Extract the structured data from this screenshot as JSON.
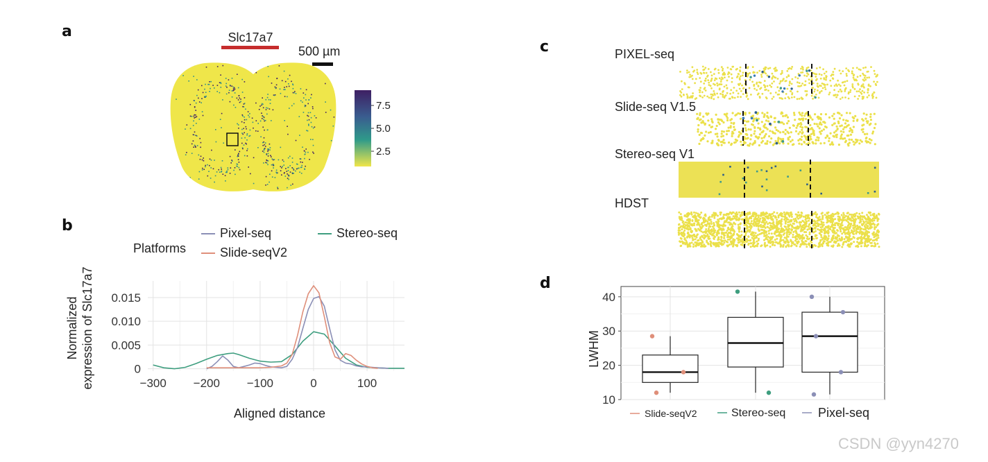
{
  "watermark": "CSDN @yyn4270",
  "panel_a": {
    "label": "a",
    "gene_title": "Slc17a7",
    "gene_bar_color": "#c62d2d",
    "scale_bar_label": "500 µm",
    "colorbar_ticks": [
      "7.5",
      "5.0",
      "2.5"
    ],
    "colors": {
      "low": "#efe64a",
      "mid": "#2f8f8a",
      "high": "#3e1f63"
    }
  },
  "panel_b": {
    "label": "b",
    "legend_title": "Platforms",
    "legend": [
      {
        "name": "Pixel-seq",
        "color": "#8b8fb6"
      },
      {
        "name": "Slide-seqV2",
        "color": "#df8f7a"
      },
      {
        "name": "Stereo-seq",
        "color": "#3e9e7f"
      }
    ],
    "ylabel_line1": "Normalized",
    "ylabel_line2": "expression of Slc17a7",
    "xlabel": "Aligned distance",
    "xticks": [
      "−300",
      "−200",
      "−100",
      "0",
      "100"
    ],
    "yticks": [
      "0",
      "0.005",
      "0.010",
      "0.015"
    ]
  },
  "panel_c": {
    "label": "c",
    "rows": [
      {
        "name": "PIXEL-seq"
      },
      {
        "name": "Slide-seq V1.5"
      },
      {
        "name": "Stereo-seq V1"
      },
      {
        "name": "HDST"
      }
    ],
    "dot_color": "#ebe04a",
    "hit_colors": [
      "#3f9a8c",
      "#2e5f8a",
      "#3a7ab8"
    ]
  },
  "panel_d": {
    "label": "d",
    "ylabel": "LWHM",
    "yticks": [
      "10",
      "20",
      "30",
      "40"
    ],
    "legend": [
      {
        "name": "Slide-seqV2",
        "color": "#df8f7a"
      },
      {
        "name": "Stereo-seq",
        "color": "#3e9e7f"
      },
      {
        "name": "Pixel-seq",
        "color": "#8b8fb6"
      }
    ]
  },
  "chart_data": [
    {
      "type": "line",
      "panel": "b",
      "title": "",
      "xlabel": "Aligned distance",
      "ylabel": "Normalized expression of Slc17a7",
      "xlim": [
        -310,
        170
      ],
      "ylim": [
        -0.0005,
        0.0185
      ],
      "series": [
        {
          "name": "Stereo-seq",
          "color": "#3e9e7f",
          "x": [
            -300,
            -280,
            -260,
            -240,
            -220,
            -200,
            -180,
            -160,
            -150,
            -140,
            -120,
            -100,
            -80,
            -60,
            -40,
            -20,
            0,
            20,
            40,
            60,
            80,
            100,
            120,
            140,
            170
          ],
          "y": [
            0.0008,
            0.0002,
            0.0,
            0.0003,
            0.0011,
            0.002,
            0.0028,
            0.0032,
            0.0033,
            0.003,
            0.0022,
            0.0016,
            0.0014,
            0.0015,
            0.003,
            0.0058,
            0.0078,
            0.0073,
            0.0048,
            0.0022,
            0.0008,
            0.0003,
            0.0002,
            0.0001,
            0.0001
          ]
        },
        {
          "name": "Pixel-seq",
          "color": "#8b8fb6",
          "x": [
            -200,
            -190,
            -180,
            -170,
            -160,
            -150,
            -140,
            -130,
            -120,
            -110,
            -100,
            -90,
            -80,
            -70,
            -60,
            -50,
            -40,
            -30,
            -20,
            -10,
            0,
            10,
            20,
            30,
            40,
            50,
            60,
            70,
            80,
            90,
            100,
            110,
            120,
            140
          ],
          "y": [
            0.0,
            0.0005,
            0.0015,
            0.0027,
            0.0018,
            0.0005,
            0.0002,
            0.0005,
            0.0008,
            0.0012,
            0.0011,
            0.0007,
            0.0004,
            0.0003,
            0.0002,
            0.0005,
            0.002,
            0.0045,
            0.0085,
            0.0125,
            0.0148,
            0.0152,
            0.0132,
            0.0085,
            0.004,
            0.0018,
            0.0012,
            0.001,
            0.0006,
            0.0004,
            0.0004,
            0.0003,
            0.0002,
            0.0001
          ]
        },
        {
          "name": "Slide-seqV2",
          "color": "#df8f7a",
          "x": [
            -200,
            -180,
            -160,
            -140,
            -120,
            -100,
            -80,
            -60,
            -50,
            -40,
            -30,
            -20,
            -10,
            0,
            10,
            20,
            30,
            40,
            50,
            60,
            70,
            80,
            90,
            100,
            110,
            120
          ],
          "y": [
            0.0002,
            0.0002,
            0.0002,
            0.0002,
            0.0002,
            0.0002,
            0.0003,
            0.0006,
            0.0012,
            0.003,
            0.007,
            0.012,
            0.0158,
            0.0175,
            0.016,
            0.011,
            0.0055,
            0.0025,
            0.002,
            0.0032,
            0.0028,
            0.0018,
            0.001,
            0.0005,
            0.0002,
            0.0001
          ]
        }
      ]
    },
    {
      "type": "box",
      "panel": "d",
      "title": "",
      "xlabel": "",
      "ylabel": "LWHM",
      "ylim": [
        10,
        43
      ],
      "categories": [
        "Slide-seqV2",
        "Stereo-seq",
        "Pixel-seq"
      ],
      "series": [
        {
          "name": "Slide-seqV2",
          "color": "#df8f7a",
          "min": 12,
          "q1": 15,
          "median": 18,
          "q3": 23,
          "max": 28.5,
          "points": [
            28.5,
            18,
            12
          ]
        },
        {
          "name": "Stereo-seq",
          "color": "#3e9e7f",
          "min": 12,
          "q1": 19.5,
          "median": 26.5,
          "q3": 34,
          "max": 41.5,
          "points": [
            41.5,
            12
          ]
        },
        {
          "name": "Pixel-seq",
          "color": "#8b8fb6",
          "min": 11.5,
          "q1": 18,
          "median": 28.5,
          "q3": 35.5,
          "max": 40,
          "points": [
            40,
            35.5,
            28.5,
            18,
            11.5
          ]
        }
      ]
    }
  ]
}
